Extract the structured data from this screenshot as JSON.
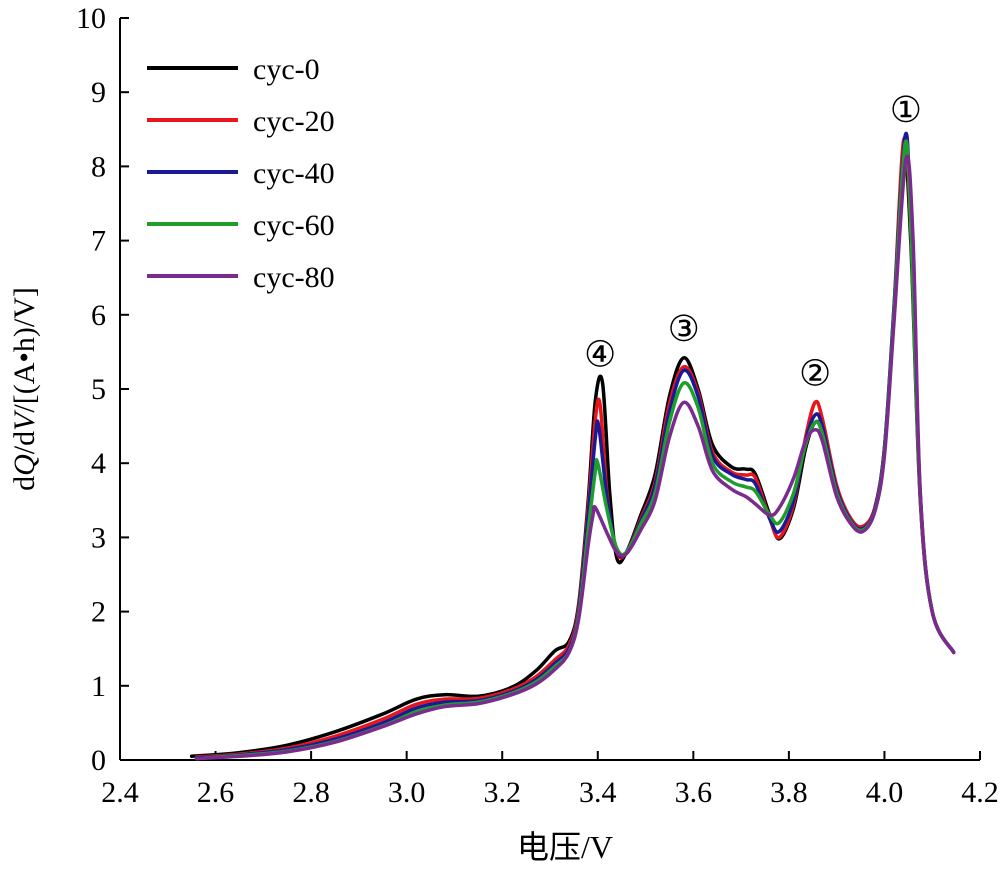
{
  "chart_data": {
    "type": "line",
    "xlabel": "电压/V",
    "ylabel_parts": [
      "d",
      "Q",
      "/d",
      "V",
      "/[(A•h)/V]"
    ],
    "xlim": [
      2.4,
      4.2
    ],
    "ylim": [
      0,
      10
    ],
    "xticks": [
      "2.4",
      "2.6",
      "2.8",
      "3.0",
      "3.2",
      "3.4",
      "3.6",
      "3.8",
      "4.0",
      "4.2"
    ],
    "yticks": [
      "0",
      "1",
      "2",
      "3",
      "4",
      "5",
      "6",
      "7",
      "8",
      "9",
      "10"
    ],
    "grid": false,
    "legend_position": "top-left",
    "annotations": [
      {
        "text": "①",
        "x": 4.045,
        "y": 8.6
      },
      {
        "text": "②",
        "x": 3.855,
        "y": 5.05
      },
      {
        "text": "③",
        "x": 3.58,
        "y": 5.65
      },
      {
        "text": "④",
        "x": 3.405,
        "y": 5.3
      }
    ],
    "series": [
      {
        "name": "cyc-0",
        "color": "#000000",
        "points": [
          [
            2.55,
            0.05
          ],
          [
            2.65,
            0.1
          ],
          [
            2.75,
            0.2
          ],
          [
            2.85,
            0.38
          ],
          [
            2.95,
            0.62
          ],
          [
            3.02,
            0.82
          ],
          [
            3.08,
            0.88
          ],
          [
            3.15,
            0.86
          ],
          [
            3.22,
            0.98
          ],
          [
            3.27,
            1.2
          ],
          [
            3.31,
            1.47
          ],
          [
            3.34,
            1.6
          ],
          [
            3.36,
            2.1
          ],
          [
            3.38,
            3.5
          ],
          [
            3.395,
            4.85
          ],
          [
            3.41,
            5.08
          ],
          [
            3.425,
            3.6
          ],
          [
            3.44,
            2.72
          ],
          [
            3.46,
            2.8
          ],
          [
            3.49,
            3.3
          ],
          [
            3.52,
            3.85
          ],
          [
            3.55,
            4.9
          ],
          [
            3.58,
            5.42
          ],
          [
            3.61,
            5.0
          ],
          [
            3.64,
            4.25
          ],
          [
            3.68,
            3.95
          ],
          [
            3.71,
            3.92
          ],
          [
            3.73,
            3.85
          ],
          [
            3.76,
            3.3
          ],
          [
            3.78,
            2.98
          ],
          [
            3.81,
            3.4
          ],
          [
            3.835,
            4.2
          ],
          [
            3.855,
            4.55
          ],
          [
            3.87,
            4.4
          ],
          [
            3.9,
            3.6
          ],
          [
            3.93,
            3.2
          ],
          [
            3.955,
            3.1
          ],
          [
            3.98,
            3.4
          ],
          [
            4.0,
            4.2
          ],
          [
            4.02,
            6.0
          ],
          [
            4.04,
            8.2
          ],
          [
            4.055,
            7.0
          ],
          [
            4.075,
            3.5
          ],
          [
            4.1,
            2.0
          ],
          [
            4.145,
            1.45
          ]
        ]
      },
      {
        "name": "cyc-20",
        "color": "#e8151b",
        "points": [
          [
            2.56,
            0.04
          ],
          [
            2.65,
            0.08
          ],
          [
            2.75,
            0.16
          ],
          [
            2.85,
            0.32
          ],
          [
            2.95,
            0.55
          ],
          [
            3.02,
            0.75
          ],
          [
            3.08,
            0.82
          ],
          [
            3.15,
            0.83
          ],
          [
            3.22,
            0.95
          ],
          [
            3.27,
            1.12
          ],
          [
            3.31,
            1.35
          ],
          [
            3.34,
            1.55
          ],
          [
            3.36,
            2.05
          ],
          [
            3.38,
            3.4
          ],
          [
            3.395,
            4.6
          ],
          [
            3.405,
            4.78
          ],
          [
            3.42,
            3.55
          ],
          [
            3.44,
            2.8
          ],
          [
            3.46,
            2.8
          ],
          [
            3.49,
            3.25
          ],
          [
            3.52,
            3.75
          ],
          [
            3.55,
            4.8
          ],
          [
            3.58,
            5.3
          ],
          [
            3.61,
            4.95
          ],
          [
            3.64,
            4.15
          ],
          [
            3.68,
            3.88
          ],
          [
            3.71,
            3.84
          ],
          [
            3.73,
            3.8
          ],
          [
            3.76,
            3.25
          ],
          [
            3.78,
            3.0
          ],
          [
            3.81,
            3.45
          ],
          [
            3.835,
            4.35
          ],
          [
            3.855,
            4.82
          ],
          [
            3.87,
            4.6
          ],
          [
            3.9,
            3.7
          ],
          [
            3.93,
            3.25
          ],
          [
            3.955,
            3.15
          ],
          [
            3.98,
            3.4
          ],
          [
            4.0,
            4.2
          ],
          [
            4.02,
            6.1
          ],
          [
            4.04,
            8.35
          ],
          [
            4.055,
            7.2
          ],
          [
            4.075,
            3.55
          ],
          [
            4.1,
            2.0
          ],
          [
            4.145,
            1.45
          ]
        ]
      },
      {
        "name": "cyc-40",
        "color": "#1a1a96",
        "points": [
          [
            2.56,
            0.03
          ],
          [
            2.65,
            0.07
          ],
          [
            2.75,
            0.14
          ],
          [
            2.85,
            0.28
          ],
          [
            2.95,
            0.5
          ],
          [
            3.02,
            0.7
          ],
          [
            3.08,
            0.78
          ],
          [
            3.15,
            0.8
          ],
          [
            3.22,
            0.92
          ],
          [
            3.27,
            1.08
          ],
          [
            3.31,
            1.3
          ],
          [
            3.34,
            1.5
          ],
          [
            3.36,
            2.0
          ],
          [
            3.38,
            3.3
          ],
          [
            3.395,
            4.35
          ],
          [
            3.402,
            4.5
          ],
          [
            3.42,
            3.5
          ],
          [
            3.44,
            2.82
          ],
          [
            3.46,
            2.8
          ],
          [
            3.49,
            3.22
          ],
          [
            3.52,
            3.7
          ],
          [
            3.55,
            4.7
          ],
          [
            3.58,
            5.25
          ],
          [
            3.61,
            4.9
          ],
          [
            3.64,
            4.1
          ],
          [
            3.68,
            3.85
          ],
          [
            3.71,
            3.78
          ],
          [
            3.73,
            3.72
          ],
          [
            3.76,
            3.25
          ],
          [
            3.78,
            3.08
          ],
          [
            3.81,
            3.5
          ],
          [
            3.835,
            4.3
          ],
          [
            3.855,
            4.65
          ],
          [
            3.87,
            4.5
          ],
          [
            3.9,
            3.65
          ],
          [
            3.93,
            3.22
          ],
          [
            3.955,
            3.12
          ],
          [
            3.98,
            3.38
          ],
          [
            4.0,
            4.2
          ],
          [
            4.02,
            6.1
          ],
          [
            4.043,
            8.4
          ],
          [
            4.055,
            7.3
          ],
          [
            4.075,
            3.6
          ],
          [
            4.1,
            2.0
          ],
          [
            4.145,
            1.45
          ]
        ]
      },
      {
        "name": "cyc-60",
        "color": "#1f9e2e",
        "points": [
          [
            2.56,
            0.02
          ],
          [
            2.65,
            0.06
          ],
          [
            2.75,
            0.12
          ],
          [
            2.85,
            0.25
          ],
          [
            2.95,
            0.46
          ],
          [
            3.02,
            0.65
          ],
          [
            3.08,
            0.74
          ],
          [
            3.15,
            0.78
          ],
          [
            3.22,
            0.9
          ],
          [
            3.27,
            1.05
          ],
          [
            3.31,
            1.26
          ],
          [
            3.34,
            1.46
          ],
          [
            3.36,
            1.95
          ],
          [
            3.38,
            3.1
          ],
          [
            3.395,
            3.9
          ],
          [
            3.4,
            4.0
          ],
          [
            3.42,
            3.35
          ],
          [
            3.44,
            2.85
          ],
          [
            3.46,
            2.8
          ],
          [
            3.49,
            3.18
          ],
          [
            3.52,
            3.6
          ],
          [
            3.55,
            4.55
          ],
          [
            3.58,
            5.08
          ],
          [
            3.61,
            4.75
          ],
          [
            3.64,
            4.0
          ],
          [
            3.68,
            3.75
          ],
          [
            3.71,
            3.68
          ],
          [
            3.73,
            3.62
          ],
          [
            3.76,
            3.3
          ],
          [
            3.78,
            3.2
          ],
          [
            3.81,
            3.6
          ],
          [
            3.835,
            4.25
          ],
          [
            3.855,
            4.55
          ],
          [
            3.87,
            4.4
          ],
          [
            3.9,
            3.6
          ],
          [
            3.93,
            3.2
          ],
          [
            3.955,
            3.1
          ],
          [
            3.98,
            3.36
          ],
          [
            4.0,
            4.15
          ],
          [
            4.02,
            6.0
          ],
          [
            4.043,
            8.3
          ],
          [
            4.055,
            7.2
          ],
          [
            4.075,
            3.55
          ],
          [
            4.1,
            2.0
          ],
          [
            4.145,
            1.45
          ]
        ]
      },
      {
        "name": "cyc-80",
        "color": "#7b2a8e",
        "points": [
          [
            2.56,
            0.02
          ],
          [
            2.65,
            0.05
          ],
          [
            2.75,
            0.11
          ],
          [
            2.85,
            0.24
          ],
          [
            2.95,
            0.45
          ],
          [
            3.02,
            0.62
          ],
          [
            3.08,
            0.72
          ],
          [
            3.15,
            0.76
          ],
          [
            3.22,
            0.88
          ],
          [
            3.27,
            1.02
          ],
          [
            3.31,
            1.22
          ],
          [
            3.34,
            1.45
          ],
          [
            3.36,
            1.9
          ],
          [
            3.38,
            2.9
          ],
          [
            3.39,
            3.3
          ],
          [
            3.395,
            3.4
          ],
          [
            3.42,
            3.05
          ],
          [
            3.44,
            2.8
          ],
          [
            3.46,
            2.78
          ],
          [
            3.49,
            3.1
          ],
          [
            3.52,
            3.5
          ],
          [
            3.55,
            4.35
          ],
          [
            3.58,
            4.82
          ],
          [
            3.61,
            4.5
          ],
          [
            3.64,
            3.9
          ],
          [
            3.68,
            3.65
          ],
          [
            3.71,
            3.55
          ],
          [
            3.73,
            3.45
          ],
          [
            3.76,
            3.3
          ],
          [
            3.78,
            3.4
          ],
          [
            3.81,
            3.8
          ],
          [
            3.835,
            4.3
          ],
          [
            3.855,
            4.45
          ],
          [
            3.87,
            4.3
          ],
          [
            3.9,
            3.55
          ],
          [
            3.93,
            3.18
          ],
          [
            3.955,
            3.08
          ],
          [
            3.98,
            3.35
          ],
          [
            4.0,
            4.1
          ],
          [
            4.02,
            5.9
          ],
          [
            4.045,
            8.1
          ],
          [
            4.06,
            7.0
          ],
          [
            4.075,
            3.6
          ],
          [
            4.1,
            2.0
          ],
          [
            4.145,
            1.45
          ]
        ]
      }
    ]
  }
}
